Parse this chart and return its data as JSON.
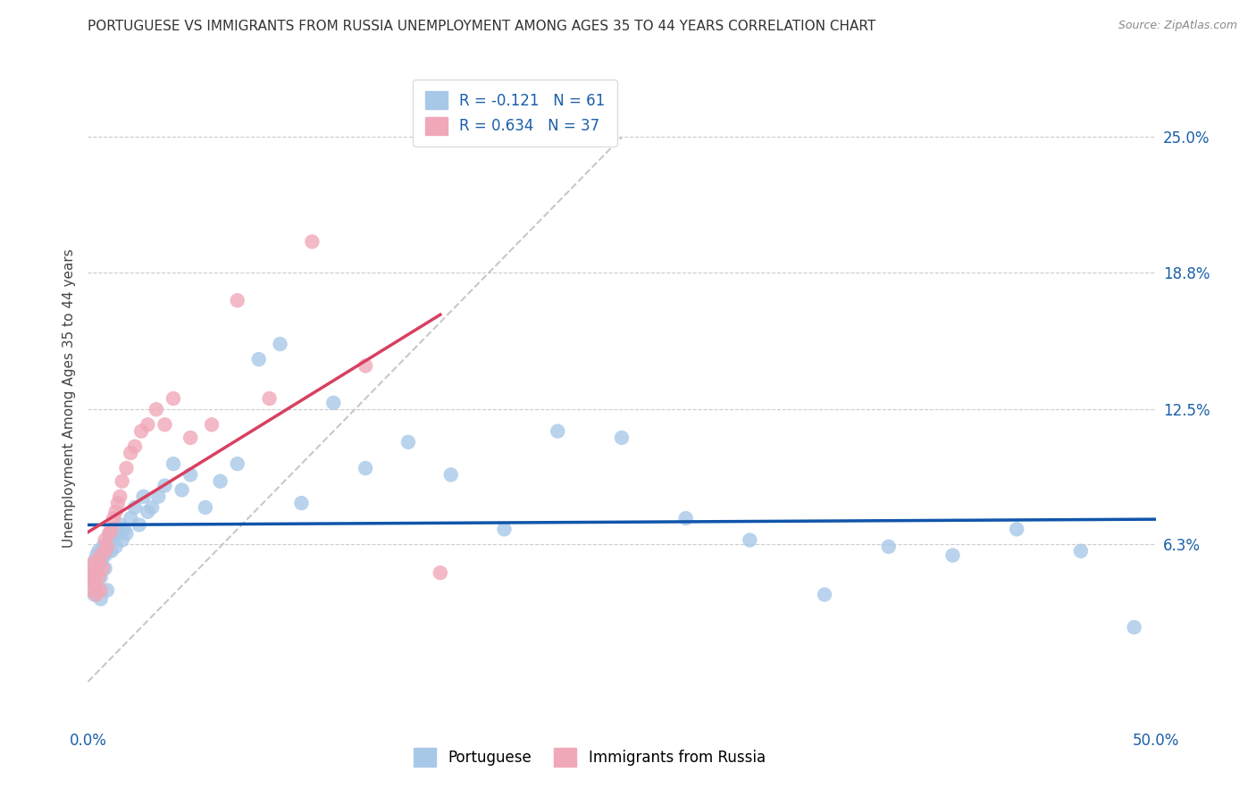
{
  "title": "PORTUGUESE VS IMMIGRANTS FROM RUSSIA UNEMPLOYMENT AMONG AGES 35 TO 44 YEARS CORRELATION CHART",
  "source": "Source: ZipAtlas.com",
  "ylabel": "Unemployment Among Ages 35 to 44 years",
  "xlim": [
    0.0,
    0.5
  ],
  "ylim": [
    -0.02,
    0.28
  ],
  "xtick_labels": [
    "0.0%",
    "50.0%"
  ],
  "xtick_values": [
    0.0,
    0.5
  ],
  "ytick_labels": [
    "6.3%",
    "12.5%",
    "18.8%",
    "25.0%"
  ],
  "ytick_values": [
    0.063,
    0.125,
    0.188,
    0.25
  ],
  "blue_scatter_color": "#a8c8e8",
  "pink_scatter_color": "#f0a8b8",
  "blue_line_color": "#1055aa",
  "pink_line_color": "#d84060",
  "diagonal_color": "#c8c8c8",
  "title_fontsize": 11,
  "source_fontsize": 9,
  "tick_fontsize": 12,
  "ylabel_fontsize": 11,
  "legend_fontsize": 12,
  "R_blue": -0.121,
  "N_blue": 61,
  "R_pink": 0.634,
  "N_pink": 37,
  "portuguese_x": [
    0.001,
    0.002,
    0.002,
    0.003,
    0.003,
    0.004,
    0.004,
    0.005,
    0.005,
    0.006,
    0.006,
    0.007,
    0.007,
    0.008,
    0.008,
    0.009,
    0.01,
    0.01,
    0.011,
    0.012,
    0.013,
    0.014,
    0.015,
    0.016,
    0.017,
    0.018,
    0.02,
    0.022,
    0.024,
    0.026,
    0.028,
    0.03,
    0.033,
    0.036,
    0.04,
    0.044,
    0.048,
    0.055,
    0.062,
    0.07,
    0.08,
    0.09,
    0.1,
    0.115,
    0.13,
    0.15,
    0.17,
    0.195,
    0.22,
    0.25,
    0.28,
    0.31,
    0.345,
    0.375,
    0.405,
    0.435,
    0.465,
    0.49,
    0.003,
    0.006,
    0.009
  ],
  "portuguese_y": [
    0.05,
    0.048,
    0.052,
    0.045,
    0.055,
    0.05,
    0.058,
    0.052,
    0.06,
    0.048,
    0.055,
    0.058,
    0.062,
    0.052,
    0.058,
    0.06,
    0.065,
    0.068,
    0.06,
    0.07,
    0.062,
    0.068,
    0.072,
    0.065,
    0.07,
    0.068,
    0.075,
    0.08,
    0.072,
    0.085,
    0.078,
    0.08,
    0.085,
    0.09,
    0.1,
    0.088,
    0.095,
    0.08,
    0.092,
    0.1,
    0.148,
    0.155,
    0.082,
    0.128,
    0.098,
    0.11,
    0.095,
    0.07,
    0.115,
    0.112,
    0.075,
    0.065,
    0.04,
    0.062,
    0.058,
    0.07,
    0.06,
    0.025,
    0.04,
    0.038,
    0.042
  ],
  "russia_x": [
    0.001,
    0.002,
    0.002,
    0.003,
    0.003,
    0.004,
    0.004,
    0.005,
    0.005,
    0.006,
    0.006,
    0.007,
    0.008,
    0.008,
    0.009,
    0.01,
    0.011,
    0.012,
    0.013,
    0.014,
    0.015,
    0.016,
    0.018,
    0.02,
    0.022,
    0.025,
    0.028,
    0.032,
    0.036,
    0.04,
    0.048,
    0.058,
    0.07,
    0.085,
    0.105,
    0.13,
    0.165
  ],
  "russia_y": [
    0.042,
    0.048,
    0.052,
    0.045,
    0.055,
    0.04,
    0.05,
    0.048,
    0.055,
    0.042,
    0.058,
    0.052,
    0.06,
    0.065,
    0.062,
    0.068,
    0.07,
    0.075,
    0.078,
    0.082,
    0.085,
    0.092,
    0.098,
    0.105,
    0.108,
    0.115,
    0.118,
    0.125,
    0.118,
    0.13,
    0.112,
    0.118,
    0.175,
    0.13,
    0.202,
    0.145,
    0.05
  ]
}
